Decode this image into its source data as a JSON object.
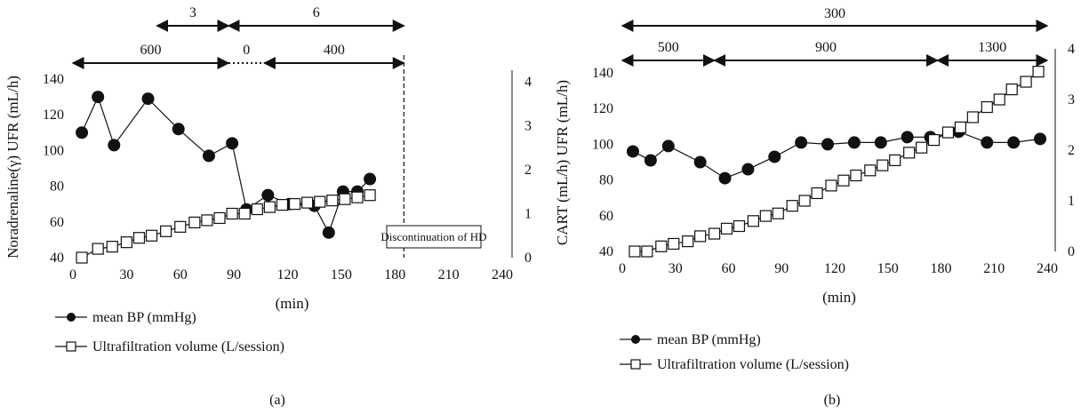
{
  "chart_data": [
    {
      "panel_label": "(a)",
      "type": "line",
      "xlabel": "(min)",
      "ylabel": "Noradrenaline(γ) UFR (mL/h)",
      "xlim": [
        0,
        240
      ],
      "ylim": [
        40,
        140
      ],
      "y2lim": [
        0,
        4
      ],
      "x_ticks": [
        "0",
        "30",
        "60",
        "90",
        "120",
        "150",
        "180",
        "210",
        "240"
      ],
      "y_ticks": [
        "40",
        "60",
        "80",
        "100",
        "120",
        "140"
      ],
      "y2_ticks": [
        "0",
        "1",
        "2",
        "3",
        "4"
      ],
      "series": [
        {
          "name": "mean BP (mmHg)",
          "axis": "left",
          "marker": "filled-circle",
          "x": [
            5,
            14,
            23,
            42,
            59,
            76,
            89,
            97,
            109,
            121,
            135,
            143,
            151,
            159,
            166
          ],
          "y": [
            110,
            130,
            103,
            129,
            112,
            97,
            104,
            67,
            75,
            70,
            69,
            54,
            77,
            77,
            84
          ]
        },
        {
          "name": "Ultrafiltration volume (L/session)",
          "axis": "right",
          "marker": "open-square",
          "x": [
            5,
            14,
            22,
            30,
            37,
            44,
            52,
            60,
            68,
            75,
            82,
            89,
            96,
            103,
            110,
            117,
            124,
            131,
            138,
            145,
            152,
            159,
            166
          ],
          "y": [
            0,
            0.2,
            0.25,
            0.35,
            0.45,
            0.5,
            0.6,
            0.7,
            0.8,
            0.85,
            0.9,
            1.0,
            1.0,
            1.1,
            1.15,
            1.2,
            1.22,
            1.25,
            1.27,
            1.3,
            1.33,
            1.37,
            1.42
          ]
        }
      ],
      "ufr_segments": [
        {
          "label": "600",
          "x0": 0,
          "x1": 87,
          "style": "solid"
        },
        {
          "label": "0",
          "x0": 87,
          "x1": 107,
          "style": "dotted"
        },
        {
          "label": "400",
          "x0": 107,
          "x1": 185,
          "style": "solid"
        }
      ],
      "noradrenaline_segments": [
        {
          "label": "3",
          "x0": 47,
          "x1": 87
        },
        {
          "label": "6",
          "x0": 87,
          "x1": 185
        }
      ],
      "vline_x": 185,
      "annotation": "Discontinuation of HD"
    },
    {
      "panel_label": "(b)",
      "type": "line",
      "xlabel": "(min)",
      "ylabel": "CART (mL/h) UFR (mL/h)",
      "xlim": [
        0,
        240
      ],
      "ylim": [
        40,
        140
      ],
      "y2lim": [
        0,
        4
      ],
      "x_ticks": [
        "0",
        "30",
        "60",
        "90",
        "120",
        "150",
        "180",
        "210",
        "240"
      ],
      "y_ticks": [
        "40",
        "60",
        "80",
        "100",
        "120",
        "140"
      ],
      "y2_ticks": [
        "0",
        "1",
        "2",
        "3",
        "4"
      ],
      "series": [
        {
          "name": "mean BP (mmHg)",
          "axis": "left",
          "marker": "filled-circle",
          "x": [
            6,
            16,
            26,
            44,
            58,
            71,
            86,
            101,
            116,
            131,
            146,
            161,
            174,
            190,
            206,
            221,
            236
          ],
          "y": [
            96,
            91,
            99,
            90,
            81,
            86,
            93,
            101,
            100,
            101,
            101,
            104,
            104,
            107,
            101,
            101,
            103
          ]
        },
        {
          "name": "Ultrafiltration volume (L/session)",
          "axis": "right",
          "marker": "open-square",
          "x": [
            7,
            14,
            22,
            29,
            37,
            44,
            52,
            59,
            66,
            74,
            81,
            88,
            96,
            103,
            110,
            118,
            125,
            132,
            140,
            147,
            154,
            162,
            169,
            176,
            184,
            191,
            198,
            206,
            213,
            220,
            228,
            235
          ],
          "y": [
            0.0,
            0.0,
            0.1,
            0.15,
            0.2,
            0.3,
            0.35,
            0.45,
            0.5,
            0.6,
            0.7,
            0.75,
            0.9,
            1.0,
            1.15,
            1.3,
            1.4,
            1.5,
            1.6,
            1.7,
            1.8,
            1.95,
            2.05,
            2.2,
            2.35,
            2.45,
            2.65,
            2.85,
            3.0,
            3.2,
            3.35,
            3.55
          ]
        }
      ],
      "ufr_segments": [
        {
          "label": "500",
          "x0": 0,
          "x1": 52,
          "style": "solid"
        },
        {
          "label": "900",
          "x0": 52,
          "x1": 178,
          "style": "solid"
        },
        {
          "label": "1300",
          "x0": 178,
          "x1": 240,
          "style": "solid"
        }
      ],
      "cart_segments": [
        {
          "label": "300",
          "x0": 0,
          "x1": 240
        }
      ]
    }
  ]
}
